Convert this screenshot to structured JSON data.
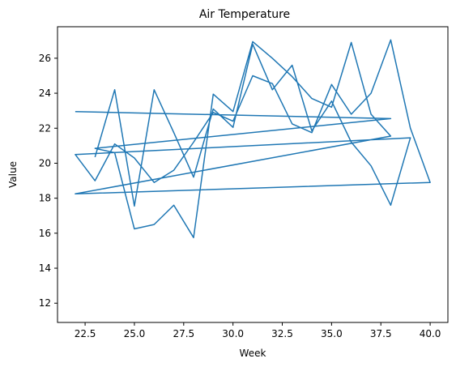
{
  "chart_data": {
    "type": "line",
    "title": "Air Temperature",
    "xlabel": "Week",
    "ylabel": "Value",
    "xlim": [
      21.1,
      40.9
    ],
    "ylim": [
      10.9,
      27.8
    ],
    "xticks": [
      22.5,
      25.0,
      27.5,
      30.0,
      32.5,
      35.0,
      37.5,
      40.0
    ],
    "xtick_labels": [
      "22.5",
      "25.0",
      "27.5",
      "30.0",
      "32.5",
      "35.0",
      "37.5",
      "40.0"
    ],
    "yticks": [
      12,
      14,
      16,
      18,
      20,
      22,
      24,
      26
    ],
    "ytick_labels": [
      "12",
      "14",
      "16",
      "18",
      "20",
      "22",
      "24",
      "26"
    ],
    "grid": false,
    "series": [
      {
        "color": "#1f77b4",
        "x": [
          22,
          38,
          23,
          24,
          25,
          26,
          27,
          28,
          29,
          30,
          31,
          32,
          33,
          34,
          35,
          36,
          37,
          38,
          22,
          40,
          39,
          38,
          37,
          36,
          35,
          34,
          33,
          32,
          31,
          30,
          29,
          28,
          27,
          26,
          25,
          24,
          23,
          22,
          39,
          38,
          37,
          36,
          35,
          34,
          33,
          32,
          31,
          30,
          29,
          28,
          27,
          26,
          25,
          24,
          23
        ],
        "y": [
          22.95,
          22.55,
          20.85,
          20.6,
          16.25,
          16.5,
          17.6,
          15.75,
          23.95,
          22.95,
          26.95,
          26.0,
          24.95,
          23.7,
          23.2,
          26.9,
          22.8,
          21.55,
          18.25,
          18.9,
          22.0,
          27.05,
          24.0,
          22.8,
          24.5,
          21.75,
          22.25,
          24.55,
          25.0,
          22.4,
          22.9,
          21.2,
          19.6,
          18.9,
          20.3,
          21.1,
          19.0,
          20.5,
          21.45,
          17.6,
          19.85,
          21.2,
          23.55,
          21.85,
          25.6,
          24.2,
          26.8,
          22.05,
          23.1,
          19.2,
          21.75,
          24.2,
          17.55,
          24.2,
          20.35
        ]
      }
    ]
  }
}
